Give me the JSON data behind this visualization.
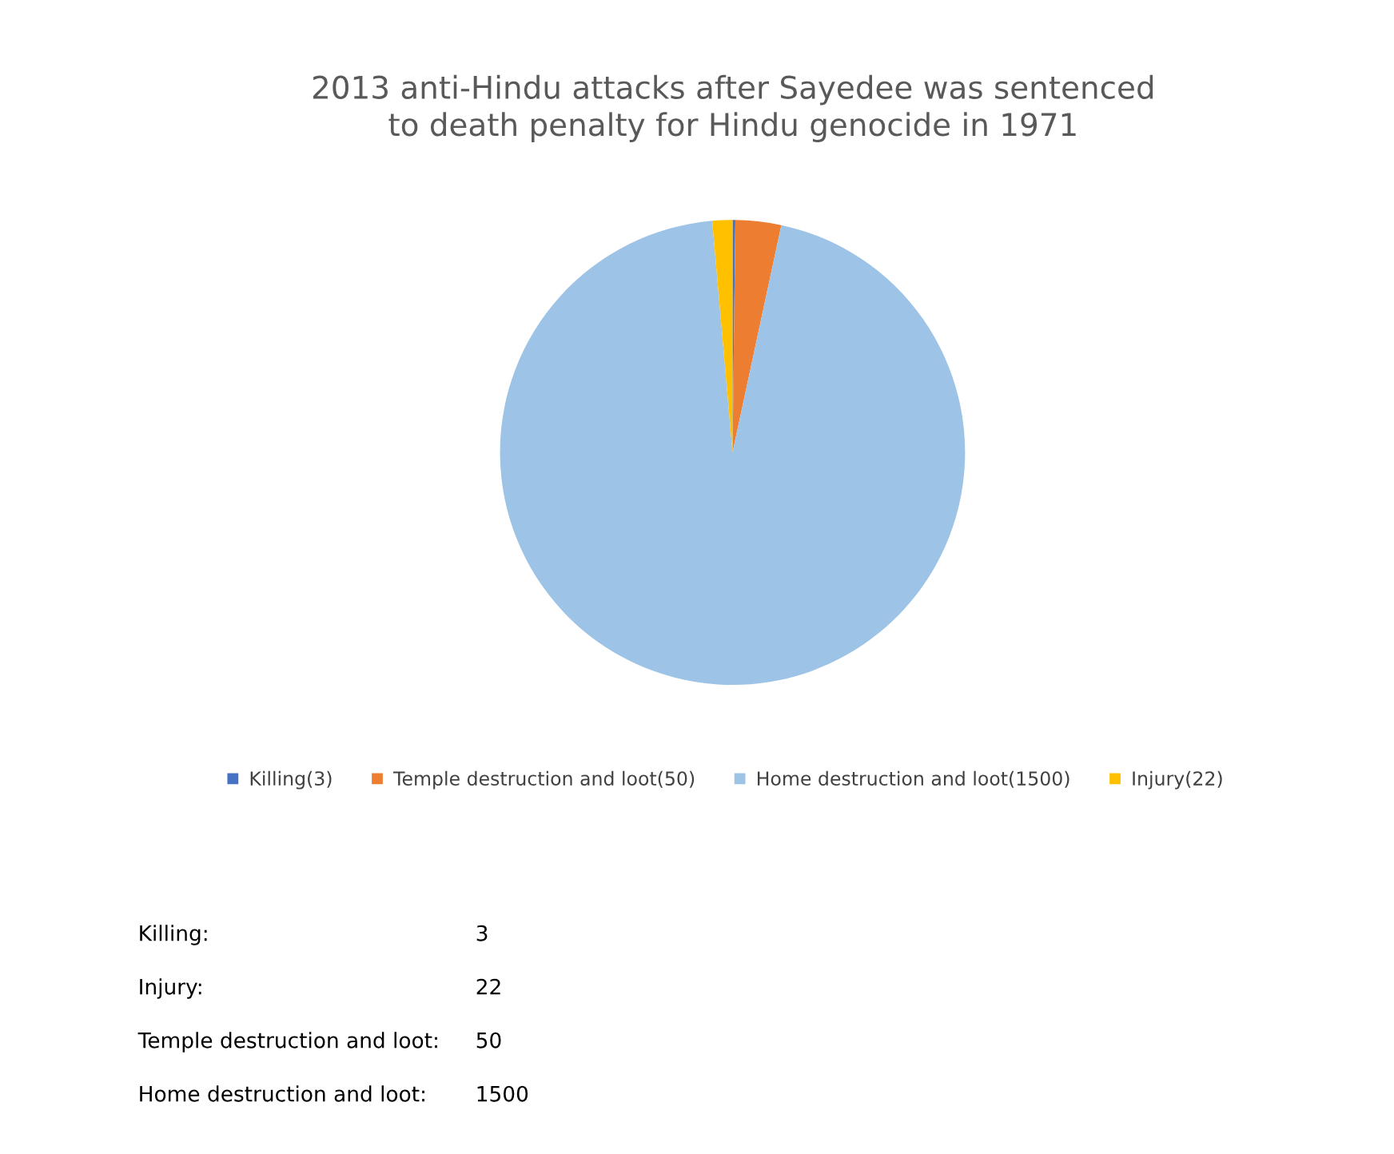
{
  "chart_data": {
    "type": "pie",
    "title": "2013 anti-Hindu attacks after Sayedee was sentenced\nto death penalty for Hindu genocide in 1971",
    "categories": [
      "Killing(3)",
      "Temple destruction and loot(50)",
      "Home destruction and loot(1500)",
      "Injury(22)"
    ],
    "values": [
      3,
      50,
      1500,
      22
    ],
    "colors": [
      "#4472c4",
      "#ed7d31",
      "#9dc3e6",
      "#ffc000"
    ],
    "legend": "bottom",
    "annotations": [
      "Killing:",
      "3",
      "Injury:",
      "22",
      "Temple destruction and loot:",
      "50",
      "Home destruction and loot:",
      "1500"
    ]
  }
}
